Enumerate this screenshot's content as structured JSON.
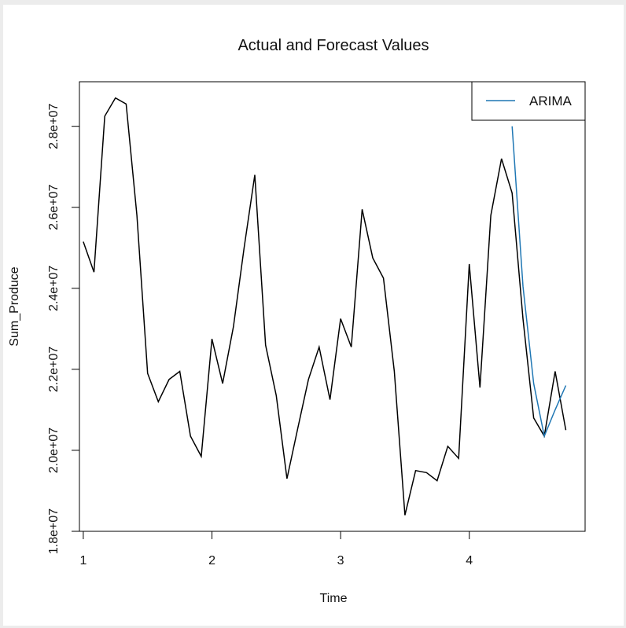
{
  "chart_data": {
    "type": "line",
    "title": "Actual and Forecast Values",
    "xlabel": "Time",
    "ylabel": "Sum_Produce",
    "xlim": [
      0.97,
      4.9
    ],
    "ylim": [
      18000000,
      29100000
    ],
    "x_ticks": [
      1,
      2,
      3,
      4
    ],
    "x_tick_labels": [
      "1",
      "2",
      "3",
      "4"
    ],
    "y_ticks": [
      18000000,
      20000000,
      22000000,
      24000000,
      26000000,
      28000000
    ],
    "y_tick_labels": [
      "1.8e+07",
      "2.0e+07",
      "2.2e+07",
      "2.4e+07",
      "2.6e+07",
      "2.8e+07"
    ],
    "grid": false,
    "legend": {
      "position": "top-right",
      "entries": [
        {
          "label": "ARIMA",
          "color": "#1f77b4"
        }
      ]
    },
    "series": [
      {
        "color": "#000000",
        "x": [
          1.0,
          1.083,
          1.167,
          1.25,
          1.333,
          1.417,
          1.5,
          1.583,
          1.667,
          1.75,
          1.833,
          1.917,
          2.0,
          2.083,
          2.167,
          2.25,
          2.333,
          2.417,
          2.5,
          2.583,
          2.667,
          2.75,
          2.833,
          2.917,
          3.0,
          3.083,
          3.167,
          3.25,
          3.333,
          3.417,
          3.5,
          3.583,
          3.667,
          3.75,
          3.833,
          3.917,
          4.0,
          4.083,
          4.167,
          4.25,
          4.333,
          4.417,
          4.5,
          4.583,
          4.667,
          4.75
        ],
        "y": [
          25150000,
          24400000,
          28250000,
          28700000,
          28550000,
          25800000,
          21900000,
          21200000,
          21750000,
          21950000,
          20350000,
          19850000,
          22750000,
          21650000,
          23050000,
          25000000,
          26800000,
          22600000,
          21350000,
          19300000,
          20550000,
          21750000,
          22550000,
          21250000,
          23250000,
          22550000,
          25950000,
          24750000,
          24250000,
          21950000,
          18400000,
          19500000,
          19450000,
          19250000,
          20100000,
          19800000,
          24600000,
          21550000,
          25800000,
          27200000,
          26350000,
          23250000,
          20800000,
          20350000,
          21950000,
          20500000
        ]
      },
      {
        "name": "ARIMA",
        "color": "#1f77b4",
        "x": [
          4.333,
          4.417,
          4.5,
          4.583,
          4.667,
          4.75
        ],
        "y": [
          28000000,
          24050000,
          21650000,
          20350000,
          21000000,
          21600000
        ]
      }
    ]
  }
}
